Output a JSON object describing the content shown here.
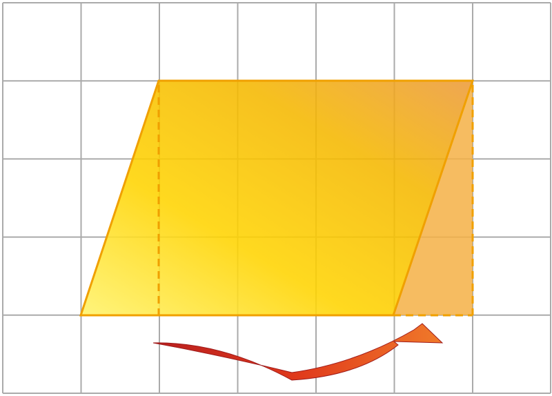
{
  "figure": {
    "grid": {
      "columns": 7,
      "rows": 5,
      "line_color": "#aaaaaa"
    },
    "parallelogram": {
      "fill_gradient": [
        "#fff36a",
        "#ffd400",
        "#f5b800",
        "#ec9a3a"
      ],
      "stroke_color": "#f0a000"
    },
    "moved_triangle": {
      "fill_color": "#f4b045",
      "dashed_stroke_color": "#f0a000"
    },
    "arrow": {
      "gradient": [
        "#b81e1e",
        "#e03a1c",
        "#f07a2a"
      ]
    }
  }
}
